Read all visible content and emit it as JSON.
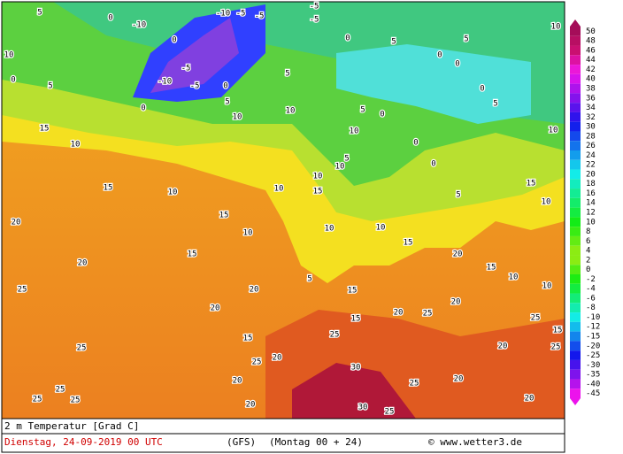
{
  "legend": {
    "values": [
      50,
      48,
      46,
      44,
      42,
      40,
      38,
      36,
      34,
      32,
      30,
      28,
      26,
      24,
      22,
      20,
      18,
      16,
      14,
      12,
      10,
      8,
      6,
      4,
      2,
      0,
      -2,
      -4,
      -6,
      -8,
      -10,
      -12,
      -15,
      -20,
      -25,
      -30,
      -35,
      -40,
      -45
    ]
  },
  "caption": {
    "title": "2 m Temperatur [Grad C]",
    "date": "Dienstag, 24-09-2019  00 UTC",
    "model": "(GFS)",
    "run": "(Montag 00 + 24)",
    "source": "© www.wetter3.de"
  },
  "map_labels": [
    5,
    -10,
    0,
    -10,
    -5,
    -5,
    -5,
    -5,
    0,
    -5,
    -10,
    -5,
    0,
    0,
    5,
    10,
    10,
    5,
    0,
    5,
    0,
    0,
    5,
    0,
    5,
    10,
    10,
    5,
    15,
    10,
    15,
    10,
    15,
    10,
    15,
    20,
    20,
    25,
    20,
    25,
    25,
    25,
    25,
    20,
    15,
    20,
    25,
    20,
    20,
    25,
    30,
    30,
    25,
    25,
    20,
    20,
    20,
    25,
    15,
    25,
    10,
    10,
    15,
    5,
    10,
    10,
    5,
    15,
    15,
    20,
    25,
    20,
    15,
    10,
    20,
    15,
    5,
    10,
    15,
    10,
    10,
    10,
    5,
    0,
    0,
    0,
    10,
    0
  ]
}
